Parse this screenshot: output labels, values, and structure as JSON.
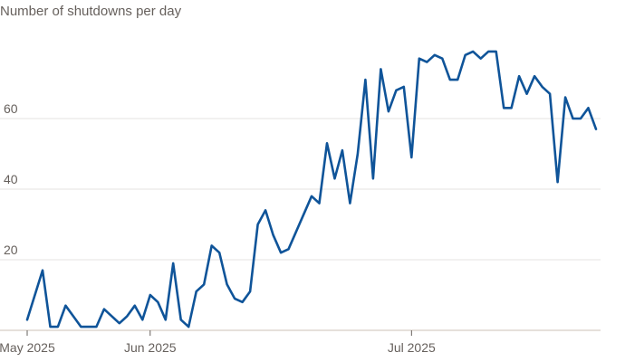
{
  "chart_data": {
    "type": "line",
    "title": "Number of shutdowns per day",
    "categories": [
      "May 2025",
      null,
      null,
      null,
      null,
      null,
      null,
      null,
      null,
      null,
      null,
      null,
      null,
      null,
      null,
      null,
      "Jun 2025",
      null,
      null,
      null,
      null,
      null,
      null,
      null,
      null,
      null,
      null,
      null,
      null,
      null,
      null,
      null,
      null,
      null,
      null,
      null,
      null,
      null,
      null,
      null,
      null,
      null,
      null,
      null,
      null,
      null,
      null,
      null,
      null,
      null,
      "Jul 2025",
      null,
      null,
      null,
      null,
      null,
      null,
      null,
      null,
      null,
      null,
      null,
      null,
      null,
      null,
      null,
      null,
      null,
      null,
      null,
      null,
      null,
      null,
      null,
      null
    ],
    "series": [
      {
        "name": "Shutdowns",
        "color": "#0f5499",
        "values": [
          3,
          10,
          17,
          1,
          1,
          7,
          4,
          1,
          1,
          1,
          6,
          4,
          2,
          4,
          7,
          3,
          10,
          8,
          3,
          19,
          3,
          1,
          11,
          13,
          24,
          22,
          13,
          9,
          8,
          11,
          30,
          34,
          27,
          22,
          23,
          28,
          33,
          38,
          36,
          53,
          43,
          51,
          36,
          50,
          71,
          43,
          74,
          62,
          68,
          69,
          49,
          77,
          76,
          78,
          77,
          71,
          71,
          78,
          79,
          77,
          79,
          79,
          63,
          63,
          72,
          67,
          72,
          69,
          67,
          42,
          66,
          60,
          60,
          63,
          57
        ]
      }
    ],
    "ylim": [
      0,
      85
    ],
    "yticks": [
      20,
      40,
      60
    ],
    "grid": true
  }
}
